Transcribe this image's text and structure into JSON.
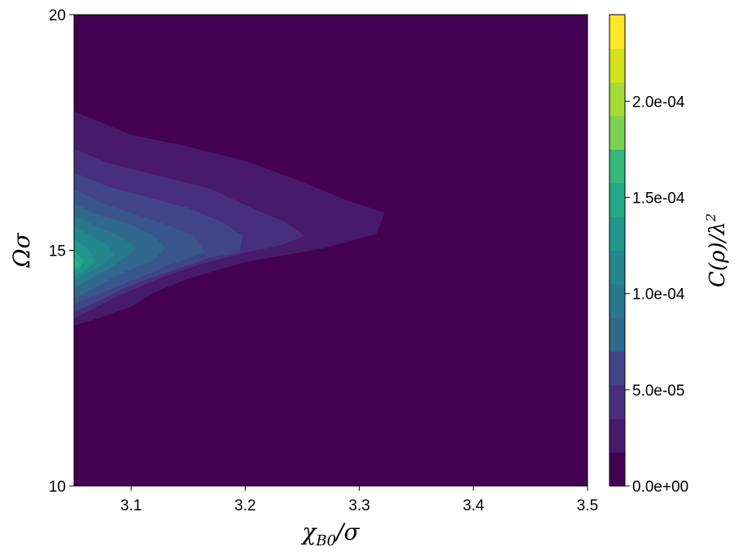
{
  "chart_data": {
    "type": "contour",
    "x_axis": {
      "label": "χ_{B0}/σ",
      "label_main": "χ",
      "label_sub": "B0",
      "label_rest": "/σ",
      "range": [
        3.05,
        3.5
      ],
      "ticks": [
        3.1,
        3.2,
        3.3,
        3.4,
        3.5
      ],
      "tick_labels": [
        "3.1",
        "3.2",
        "3.3",
        "3.4",
        "3.5"
      ]
    },
    "y_axis": {
      "label": "Ωσ",
      "range": [
        10,
        20
      ],
      "ticks": [
        10,
        15,
        20
      ],
      "tick_labels": [
        "10",
        "15",
        "20"
      ]
    },
    "colorbar": {
      "label": "C(ρ)/λ²",
      "label_main": "C(ρ)/λ",
      "label_sup": "2",
      "range": [
        0,
        0.000245
      ],
      "levels": [
        0,
        1.75e-05,
        3.5e-05,
        5.25e-05,
        7e-05,
        8.75e-05,
        0.000105,
        0.0001225,
        0.00014,
        0.0001575,
        0.000175,
        0.0001925,
        0.00021,
        0.0002275,
        0.000245
      ],
      "ticks": [
        0,
        5e-05,
        0.0001,
        0.00015,
        0.0002
      ],
      "tick_labels": [
        "0.0e+00",
        "5.0e-05",
        "1.0e-04",
        "1.5e-04",
        "2.0e-04"
      ]
    },
    "colormap": [
      "#440154",
      "#481a6c",
      "#472f7d",
      "#414487",
      "#39568c",
      "#31688e",
      "#2a788e",
      "#23888e",
      "#1f988b",
      "#22a884",
      "#35b779",
      "#54c568",
      "#7ad151",
      "#a5db36",
      "#d2e21b",
      "#fde725"
    ],
    "contour_regions": [
      {
        "level": 1,
        "points": [
          [
            3.05,
            17.95
          ],
          [
            3.07,
            17.75
          ],
          [
            3.1,
            17.45
          ],
          [
            3.15,
            17.2
          ],
          [
            3.2,
            16.9
          ],
          [
            3.25,
            16.45
          ],
          [
            3.29,
            16.05
          ],
          [
            3.322,
            15.8
          ],
          [
            3.315,
            15.35
          ],
          [
            3.27,
            15.05
          ],
          [
            3.2,
            14.75
          ],
          [
            3.15,
            14.4
          ],
          [
            3.12,
            14.1
          ],
          [
            3.1,
            13.8
          ],
          [
            3.07,
            13.55
          ],
          [
            3.05,
            13.4
          ]
        ]
      },
      {
        "level": 2,
        "points": [
          [
            3.05,
            17.15
          ],
          [
            3.08,
            16.85
          ],
          [
            3.12,
            16.6
          ],
          [
            3.17,
            16.3
          ],
          [
            3.21,
            15.85
          ],
          [
            3.235,
            15.6
          ],
          [
            3.252,
            15.3
          ],
          [
            3.23,
            15.1
          ],
          [
            3.2,
            14.95
          ],
          [
            3.16,
            14.7
          ],
          [
            3.13,
            14.45
          ],
          [
            3.11,
            14.25
          ],
          [
            3.09,
            14.05
          ],
          [
            3.07,
            13.8
          ],
          [
            3.05,
            13.55
          ]
        ]
      },
      {
        "level": 3,
        "points": [
          [
            3.05,
            16.65
          ],
          [
            3.08,
            16.35
          ],
          [
            3.11,
            16.15
          ],
          [
            3.15,
            15.9
          ],
          [
            3.18,
            15.6
          ],
          [
            3.198,
            15.3
          ],
          [
            3.195,
            14.95
          ],
          [
            3.17,
            14.85
          ],
          [
            3.14,
            14.6
          ],
          [
            3.11,
            14.35
          ],
          [
            3.09,
            14.15
          ],
          [
            3.07,
            13.9
          ],
          [
            3.05,
            13.7
          ]
        ]
      },
      {
        "level": 4,
        "points": [
          [
            3.05,
            16.3
          ],
          [
            3.075,
            16.0
          ],
          [
            3.105,
            15.75
          ],
          [
            3.13,
            15.55
          ],
          [
            3.155,
            15.3
          ],
          [
            3.165,
            14.95
          ],
          [
            3.14,
            14.75
          ],
          [
            3.115,
            14.5
          ],
          [
            3.09,
            14.25
          ],
          [
            3.07,
            14.05
          ],
          [
            3.05,
            13.85
          ]
        ]
      },
      {
        "level": 5,
        "points": [
          [
            3.05,
            16.0
          ],
          [
            3.07,
            15.75
          ],
          [
            3.1,
            15.55
          ],
          [
            3.12,
            15.3
          ],
          [
            3.13,
            15.05
          ],
          [
            3.12,
            14.8
          ],
          [
            3.095,
            14.55
          ],
          [
            3.075,
            14.3
          ],
          [
            3.06,
            14.1
          ],
          [
            3.05,
            14.0
          ]
        ]
      },
      {
        "level": 6,
        "points": [
          [
            3.05,
            15.75
          ],
          [
            3.07,
            15.5
          ],
          [
            3.09,
            15.3
          ],
          [
            3.105,
            15.05
          ],
          [
            3.095,
            14.85
          ],
          [
            3.08,
            14.6
          ],
          [
            3.065,
            14.4
          ],
          [
            3.05,
            14.2
          ]
        ]
      },
      {
        "level": 7,
        "points": [
          [
            3.05,
            15.5
          ],
          [
            3.065,
            15.3
          ],
          [
            3.08,
            15.1
          ],
          [
            3.085,
            14.9
          ],
          [
            3.075,
            14.7
          ],
          [
            3.06,
            14.5
          ],
          [
            3.05,
            14.35
          ]
        ]
      },
      {
        "level": 8,
        "points": [
          [
            3.05,
            15.25
          ],
          [
            3.063,
            15.0
          ],
          [
            3.068,
            14.75
          ],
          [
            3.058,
            14.55
          ],
          [
            3.05,
            14.45
          ]
        ]
      },
      {
        "level": 9,
        "points": [
          [
            3.05,
            15.0
          ],
          [
            3.058,
            14.8
          ],
          [
            3.056,
            14.65
          ],
          [
            3.05,
            14.55
          ]
        ]
      },
      {
        "level": 10,
        "points": [
          [
            3.05,
            14.85
          ],
          [
            3.054,
            14.72
          ],
          [
            3.05,
            14.6
          ]
        ]
      }
    ]
  }
}
